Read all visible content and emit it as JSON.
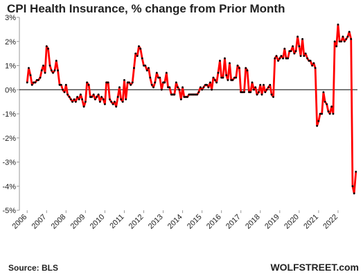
{
  "chart_data": {
    "type": "line",
    "title": "CPI Health Insurance, % change from Prior Month",
    "source": "Source: BLS",
    "watermark": "WOLFSTREET.com",
    "color": "#ff0000",
    "marker_color": "#000000",
    "xlim": [
      2005.6,
      2023.0
    ],
    "xticks": [
      2006,
      2007,
      2008,
      2009,
      2010,
      2011,
      2012,
      2013,
      2014,
      2015,
      2016,
      2017,
      2018,
      2019,
      2020,
      2021,
      2022
    ],
    "ylim": [
      -5,
      3
    ],
    "yticks": [
      {
        "value": -5,
        "label": "-5%"
      },
      {
        "value": -4,
        "label": "-4%"
      },
      {
        "value": -3,
        "label": "-3%"
      },
      {
        "value": -2,
        "label": "-2%"
      },
      {
        "value": -1,
        "label": "-1%"
      },
      {
        "value": 0,
        "label": "0%"
      },
      {
        "value": 1,
        "label": "1%"
      },
      {
        "value": 2,
        "label": "2%"
      },
      {
        "value": 3,
        "label": "3%"
      }
    ],
    "x": [
      2006.0,
      2006.08,
      2006.17,
      2006.25,
      2006.33,
      2006.42,
      2006.5,
      2006.58,
      2006.67,
      2006.75,
      2006.83,
      2006.92,
      2007.0,
      2007.08,
      2007.17,
      2007.25,
      2007.33,
      2007.42,
      2007.5,
      2007.58,
      2007.67,
      2007.75,
      2007.83,
      2007.92,
      2008.0,
      2008.08,
      2008.17,
      2008.25,
      2008.33,
      2008.42,
      2008.5,
      2008.58,
      2008.67,
      2008.75,
      2008.83,
      2008.92,
      2009.0,
      2009.08,
      2009.17,
      2009.25,
      2009.33,
      2009.42,
      2009.5,
      2009.58,
      2009.67,
      2009.75,
      2009.83,
      2009.92,
      2010.0,
      2010.08,
      2010.17,
      2010.25,
      2010.33,
      2010.42,
      2010.5,
      2010.58,
      2010.67,
      2010.75,
      2010.83,
      2010.92,
      2011.0,
      2011.08,
      2011.17,
      2011.25,
      2011.33,
      2011.42,
      2011.5,
      2011.58,
      2011.67,
      2011.75,
      2011.83,
      2011.92,
      2012.0,
      2012.08,
      2012.17,
      2012.25,
      2012.33,
      2012.42,
      2012.5,
      2012.58,
      2012.67,
      2012.75,
      2012.83,
      2012.92,
      2013.0,
      2013.08,
      2013.17,
      2013.25,
      2013.33,
      2013.42,
      2013.5,
      2013.58,
      2013.67,
      2013.75,
      2013.83,
      2013.92,
      2014.0,
      2014.08,
      2014.17,
      2014.25,
      2014.33,
      2014.42,
      2014.5,
      2014.58,
      2014.67,
      2014.75,
      2014.83,
      2014.92,
      2015.0,
      2015.08,
      2015.17,
      2015.25,
      2015.33,
      2015.42,
      2015.5,
      2015.58,
      2015.67,
      2015.75,
      2015.83,
      2015.92,
      2016.0,
      2016.08,
      2016.17,
      2016.25,
      2016.33,
      2016.42,
      2016.5,
      2016.58,
      2016.67,
      2016.75,
      2016.83,
      2016.92,
      2017.0,
      2017.08,
      2017.17,
      2017.25,
      2017.33,
      2017.42,
      2017.5,
      2017.58,
      2017.67,
      2017.75,
      2017.83,
      2017.92,
      2018.0,
      2018.08,
      2018.17,
      2018.25,
      2018.33,
      2018.42,
      2018.5,
      2018.58,
      2018.67,
      2018.75,
      2018.83,
      2018.92,
      2019.0,
      2019.08,
      2019.17,
      2019.25,
      2019.33,
      2019.42,
      2019.5,
      2019.58,
      2019.67,
      2019.75,
      2019.83,
      2019.92,
      2020.0,
      2020.08,
      2020.17,
      2020.25,
      2020.33,
      2020.42,
      2020.5,
      2020.58,
      2020.67,
      2020.75,
      2020.83,
      2020.92,
      2021.0,
      2021.08,
      2021.17,
      2021.25,
      2021.33,
      2021.42,
      2021.5,
      2021.58,
      2021.67,
      2021.75,
      2021.83,
      2021.92,
      2022.0,
      2022.08,
      2022.17,
      2022.25,
      2022.33,
      2022.42,
      2022.5,
      2022.58,
      2022.67,
      2022.75,
      2022.83,
      2022.92
    ],
    "values": [
      0.3,
      0.9,
      0.6,
      0.2,
      0.3,
      0.3,
      0.4,
      0.4,
      0.5,
      0.8,
      1.0,
      0.7,
      1.8,
      1.7,
      1.0,
      0.8,
      0.7,
      0.8,
      1.2,
      0.8,
      0.2,
      0.2,
      0.0,
      -0.1,
      0.2,
      -0.2,
      -0.3,
      -0.4,
      -0.5,
      -0.4,
      -0.5,
      -0.3,
      -0.4,
      -0.2,
      -0.4,
      -0.7,
      -0.5,
      0.3,
      0.2,
      -0.3,
      -0.3,
      -0.2,
      -0.4,
      -0.3,
      -0.2,
      -0.5,
      -0.3,
      -0.4,
      -0.6,
      0.3,
      0.3,
      -0.4,
      -0.5,
      -0.6,
      -0.5,
      -0.7,
      -0.3,
      0.1,
      -0.4,
      -0.5,
      0.4,
      -0.4,
      0.3,
      0.3,
      0.2,
      0.3,
      0.9,
      1.5,
      1.4,
      1.8,
      1.7,
      1.3,
      1.0,
      1.0,
      0.8,
      0.9,
      0.5,
      0.2,
      0.1,
      0.3,
      0.7,
      0.5,
      0.5,
      0.0,
      0.3,
      0.3,
      0.7,
      0.1,
      0.1,
      -0.2,
      -0.2,
      -0.2,
      0.3,
      0.1,
      0.0,
      -0.4,
      0.1,
      -0.3,
      -0.3,
      -0.3,
      -0.2,
      -0.2,
      -0.2,
      -0.2,
      -0.2,
      -0.2,
      -0.1,
      0.1,
      0.0,
      0.1,
      0.2,
      0.2,
      0.1,
      0.3,
      0.0,
      0.5,
      0.4,
      0.3,
      0.7,
      1.2,
      0.5,
      0.5,
      1.3,
      0.6,
      0.4,
      1.1,
      0.4,
      0.4,
      0.5,
      0.5,
      1.0,
      0.9,
      -0.1,
      -0.1,
      -0.1,
      0.9,
      0.8,
      -0.1,
      -0.1,
      0.3,
      0.0,
      0.1,
      -0.2,
      -0.1,
      0.2,
      -0.2,
      0.2,
      -0.1,
      0.0,
      0.1,
      0.2,
      -0.2,
      -0.3,
      1.3,
      1.4,
      1.2,
      1.3,
      1.4,
      1.3,
      1.7,
      1.3,
      1.3,
      1.6,
      1.6,
      1.8,
      1.5,
      1.6,
      2.2,
      1.8,
      1.4,
      2.1,
      1.4,
      1.5,
      1.3,
      1.2,
      1.2,
      1.0,
      1.1,
      0.9,
      -1.5,
      -1.3,
      -1.0,
      -1.0,
      -0.1,
      -0.5,
      -0.6,
      -0.9,
      -1.0,
      -0.7,
      -1.0,
      2.0,
      1.8,
      2.7,
      2.0,
      2.0,
      2.2,
      2.0,
      2.1,
      2.2,
      2.4,
      2.1,
      -4.0,
      -4.3,
      -3.4
    ]
  }
}
